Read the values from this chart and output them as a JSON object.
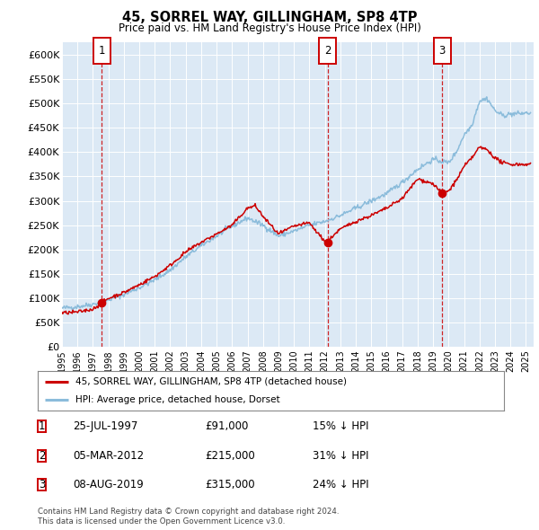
{
  "title": "45, SORREL WAY, GILLINGHAM, SP8 4TP",
  "subtitle": "Price paid vs. HM Land Registry's House Price Index (HPI)",
  "ylabel_ticks": [
    "£0",
    "£50K",
    "£100K",
    "£150K",
    "£200K",
    "£250K",
    "£300K",
    "£350K",
    "£400K",
    "£450K",
    "£500K",
    "£550K",
    "£600K"
  ],
  "ytick_values": [
    0,
    50000,
    100000,
    150000,
    200000,
    250000,
    300000,
    350000,
    400000,
    450000,
    500000,
    550000,
    600000
  ],
  "xlim_start": 1995.3,
  "xlim_end": 2025.5,
  "ylim_min": 0,
  "ylim_max": 625000,
  "background_color": "#dce9f5",
  "legend_label_red": "45, SORREL WAY, GILLINGHAM, SP8 4TP (detached house)",
  "legend_label_blue": "HPI: Average price, detached house, Dorset",
  "sale_points": [
    {
      "date_x": 1997.57,
      "price": 91000,
      "label": "1"
    },
    {
      "date_x": 2012.17,
      "price": 215000,
      "label": "2"
    },
    {
      "date_x": 2019.59,
      "price": 315000,
      "label": "3"
    }
  ],
  "table_rows": [
    {
      "num": "1",
      "date": "25-JUL-1997",
      "price": "£91,000",
      "hpi": "15% ↓ HPI"
    },
    {
      "num": "2",
      "date": "05-MAR-2012",
      "price": "£215,000",
      "hpi": "31% ↓ HPI"
    },
    {
      "num": "3",
      "date": "08-AUG-2019",
      "price": "£315,000",
      "hpi": "24% ↓ HPI"
    }
  ],
  "footer": "Contains HM Land Registry data © Crown copyright and database right 2024.\nThis data is licensed under the Open Government Licence v3.0.",
  "hpi_color": "#8bbcdb",
  "sale_line_color": "#cc0000",
  "marker_color": "#cc0000",
  "vline_color": "#cc0000",
  "box_color": "#cc0000"
}
